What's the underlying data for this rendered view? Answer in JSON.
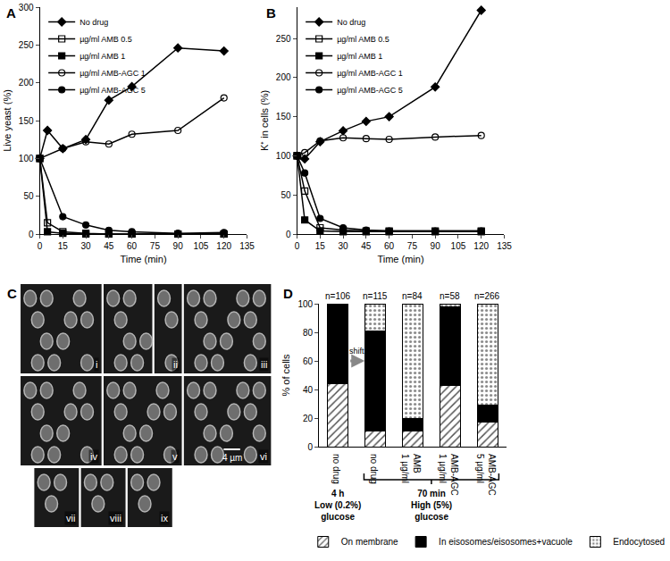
{
  "chart_data": [
    {
      "type": "line",
      "title": "A",
      "x_label": "Time (min)",
      "y_label": "Live yeast (%)",
      "xlim": [
        0,
        135
      ],
      "xticks": [
        0,
        15,
        30,
        45,
        60,
        75,
        90,
        105,
        120,
        135
      ],
      "ylim": [
        0,
        300
      ],
      "yticks": [
        0,
        50,
        100,
        150,
        200,
        250,
        300
      ],
      "grid": false,
      "legend": "upper left",
      "series": [
        {
          "name": "No drug",
          "color": "#000000",
          "marker": "diamond",
          "x": [
            0,
            5,
            15,
            30,
            45,
            60,
            90,
            120
          ],
          "values": [
            100,
            137,
            113,
            125,
            177,
            195,
            246,
            242
          ]
        },
        {
          "name": "µg/ml AMB 0.5",
          "color": "#000000",
          "marker": "square-open",
          "x": [
            0,
            5,
            15,
            30,
            45,
            60,
            90,
            120
          ],
          "values": [
            100,
            15,
            3,
            1,
            0,
            0,
            0,
            0
          ]
        },
        {
          "name": "µg/ml AMB 1",
          "color": "#000000",
          "marker": "square",
          "x": [
            0,
            5,
            15,
            30,
            45,
            60,
            90,
            120
          ],
          "values": [
            100,
            3,
            1,
            0,
            0,
            0,
            0,
            0
          ]
        },
        {
          "name": "µg/ml AMB-AGC 1",
          "color": "#000000",
          "marker": "circle-open",
          "x": [
            0,
            15,
            30,
            45,
            60,
            90,
            120
          ],
          "values": [
            100,
            113,
            122,
            119,
            132,
            137,
            180
          ]
        },
        {
          "name": "µg/ml AMB-AGC 5",
          "color": "#000000",
          "marker": "circle",
          "x": [
            0,
            15,
            30,
            45,
            60,
            90,
            120
          ],
          "values": [
            100,
            23,
            12,
            5,
            3,
            1,
            2
          ]
        }
      ]
    },
    {
      "type": "line",
      "title": "B",
      "x_label": "Time (min)",
      "y_label": "K⁺ in cells (%)",
      "xlim": [
        0,
        135
      ],
      "xticks": [
        0,
        15,
        30,
        45,
        60,
        75,
        90,
        105,
        120,
        135
      ],
      "ylim": [
        0,
        290
      ],
      "yticks": [
        0,
        50,
        100,
        150,
        200,
        250
      ],
      "grid": false,
      "legend": "upper left",
      "series": [
        {
          "name": "No drug",
          "color": "#000000",
          "marker": "diamond",
          "x": [
            0,
            5,
            15,
            30,
            45,
            60,
            90,
            120
          ],
          "values": [
            100,
            96,
            118,
            132,
            144,
            150,
            188,
            286
          ]
        },
        {
          "name": "µg/ml AMB 0.5",
          "color": "#000000",
          "marker": "square-open",
          "x": [
            0,
            5,
            15,
            30,
            45,
            60,
            90,
            120
          ],
          "values": [
            100,
            55,
            8,
            5,
            4,
            4,
            4,
            4
          ]
        },
        {
          "name": "µg/ml AMB 1",
          "color": "#000000",
          "marker": "square",
          "x": [
            0,
            5,
            15,
            30,
            45,
            60,
            90,
            120
          ],
          "values": [
            100,
            18,
            4,
            3,
            3,
            3,
            3,
            3
          ]
        },
        {
          "name": "µg/ml AMB-AGC 1",
          "color": "#000000",
          "marker": "circle-open",
          "x": [
            0,
            5,
            15,
            30,
            45,
            60,
            90,
            120
          ],
          "values": [
            100,
            104,
            119,
            123,
            122,
            121,
            124,
            126
          ]
        },
        {
          "name": "µg/ml AMB-AGC 5",
          "color": "#000000",
          "marker": "circle",
          "x": [
            0,
            5,
            15,
            30,
            45,
            60,
            90,
            120
          ],
          "values": [
            100,
            78,
            20,
            8,
            5,
            4,
            4,
            4
          ]
        }
      ]
    },
    {
      "type": "bar",
      "title": "D",
      "y_label": "% of cells",
      "stacked": true,
      "categories": [
        "no drug",
        "no drug",
        "AMB\n1 µg/ml",
        "AMB-AGC\n1 µg/ml",
        "AMB-AGC\n5 µg/ml"
      ],
      "ylim": [
        0,
        100
      ],
      "yticks": [
        0,
        20,
        40,
        60,
        80,
        100
      ],
      "grid": false,
      "legend": "bottom",
      "series": [
        {
          "name": "On membrane",
          "color": "#555555",
          "marker": "hatch",
          "values": [
            44,
            11,
            11,
            43,
            17
          ]
        },
        {
          "name": "In eisosomes/eisosomes+vacuole",
          "color": "#000000",
          "marker": "solid",
          "values": [
            56,
            70,
            9,
            55,
            12
          ]
        },
        {
          "name": "Endocytosed",
          "color": "#888888",
          "marker": "dots",
          "values": [
            0,
            19,
            80,
            2,
            71
          ]
        }
      ],
      "bar_notes": [
        "n=106",
        "n=115",
        "n=84",
        "n=58",
        "n=266"
      ],
      "shift_note": "shift",
      "group_notes": [
        {
          "text": "4 h\nLow (0.2%)\nglucose",
          "categories": [
            0,
            0
          ]
        },
        {
          "text": "70 min\nHigh (5%)\nglucose",
          "categories": [
            1,
            4
          ]
        }
      ]
    }
  ],
  "image_panel": {
    "title": "C",
    "labels": [
      "i",
      "ii",
      "iii",
      "iv",
      "v",
      "vi",
      "vii",
      "viii",
      "ix"
    ],
    "scale_bar": "4 µm"
  }
}
